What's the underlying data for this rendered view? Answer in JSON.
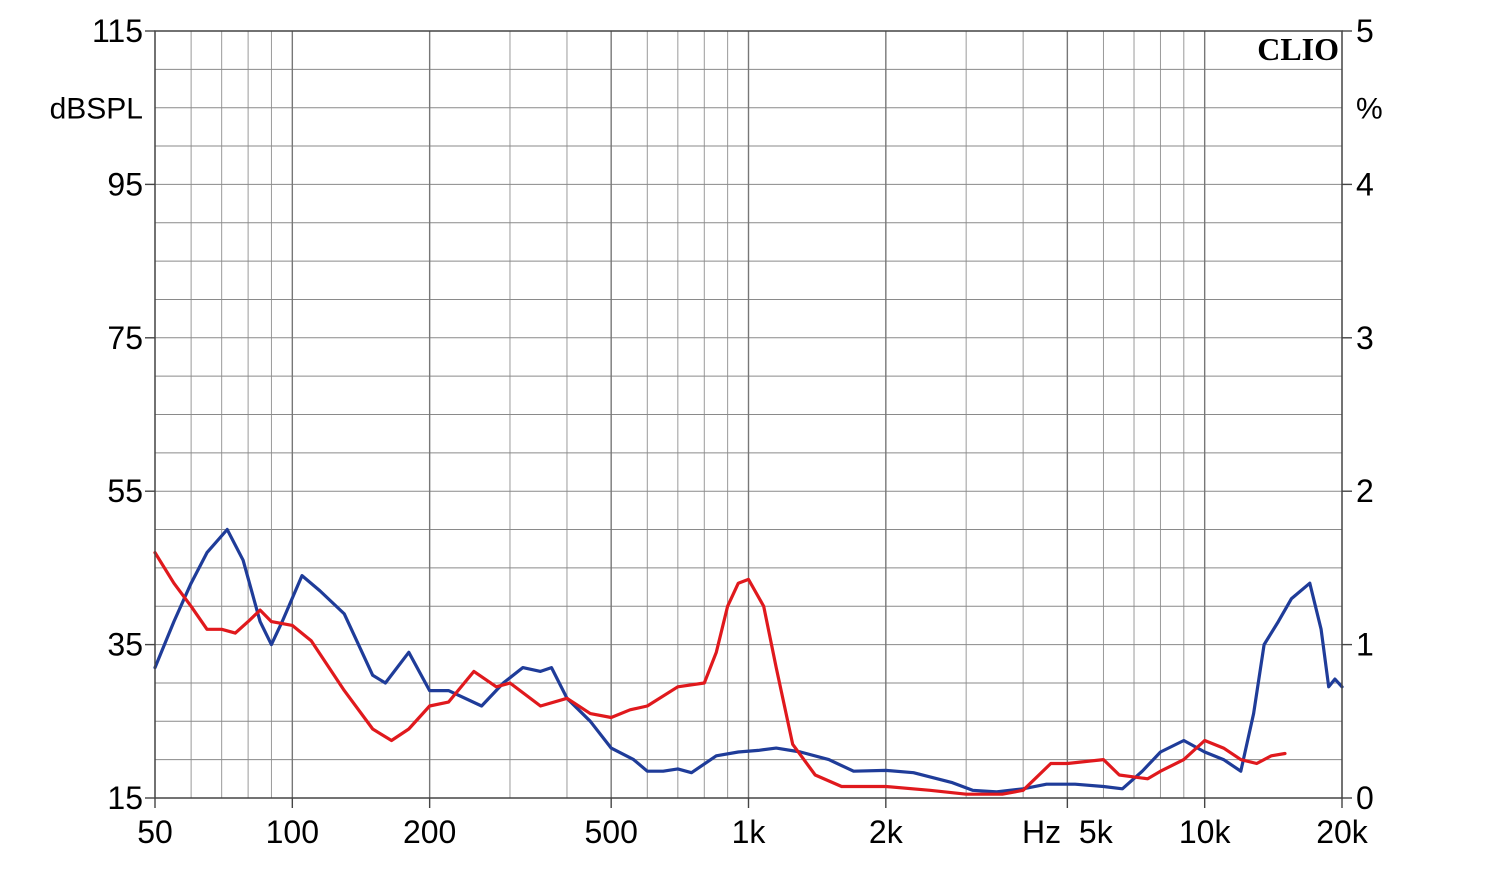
{
  "chart_data": {
    "type": "line",
    "brand_label": "CLIO",
    "x_axis": {
      "scale": "log",
      "range_hz": [
        50,
        20000
      ],
      "tick_values": [
        50,
        100,
        200,
        500,
        1000,
        2000,
        5000,
        10000,
        20000
      ],
      "tick_labels": [
        "50",
        "100",
        "200",
        "500",
        "1k",
        "2k",
        "Hz  5k",
        "10k",
        "20k"
      ]
    },
    "y_left": {
      "unit_label": "dBSPL",
      "range": [
        15,
        115
      ],
      "tick_values": [
        115,
        95,
        75,
        55,
        35,
        15
      ],
      "tick_labels": [
        "115",
        "95",
        "75",
        "55",
        "35",
        "15"
      ]
    },
    "y_right": {
      "unit_label": "%",
      "range": [
        0,
        5
      ],
      "tick_values": [
        5,
        4,
        3,
        2,
        1,
        0
      ],
      "tick_labels": [
        "5",
        "4",
        "3",
        "2",
        "1",
        "0"
      ]
    },
    "grid": true,
    "series": [
      {
        "color": "#1f3c99",
        "points": [
          [
            50,
            32
          ],
          [
            55,
            38
          ],
          [
            60,
            43
          ],
          [
            65,
            47
          ],
          [
            72,
            50
          ],
          [
            78,
            46
          ],
          [
            85,
            38
          ],
          [
            90,
            35
          ],
          [
            95,
            38
          ],
          [
            105,
            44
          ],
          [
            115,
            42
          ],
          [
            130,
            39
          ],
          [
            150,
            31
          ],
          [
            160,
            30
          ],
          [
            180,
            34
          ],
          [
            200,
            29
          ],
          [
            220,
            29
          ],
          [
            260,
            27
          ],
          [
            290,
            30
          ],
          [
            320,
            32
          ],
          [
            350,
            31.5
          ],
          [
            370,
            32
          ],
          [
            400,
            28
          ],
          [
            450,
            25
          ],
          [
            500,
            21.5
          ],
          [
            560,
            20
          ],
          [
            600,
            18.5
          ],
          [
            650,
            18.5
          ],
          [
            700,
            18.8
          ],
          [
            750,
            18.3
          ],
          [
            850,
            20.5
          ],
          [
            950,
            21
          ],
          [
            1050,
            21.2
          ],
          [
            1150,
            21.5
          ],
          [
            1300,
            21
          ],
          [
            1500,
            20
          ],
          [
            1700,
            18.5
          ],
          [
            2000,
            18.6
          ],
          [
            2300,
            18.3
          ],
          [
            2800,
            17
          ],
          [
            3100,
            16
          ],
          [
            3500,
            15.8
          ],
          [
            4000,
            16.2
          ],
          [
            4500,
            16.8
          ],
          [
            5200,
            16.8
          ],
          [
            6000,
            16.5
          ],
          [
            6600,
            16.2
          ],
          [
            7300,
            18.5
          ],
          [
            8000,
            21
          ],
          [
            9000,
            22.5
          ],
          [
            10000,
            21
          ],
          [
            11000,
            20
          ],
          [
            12000,
            18.5
          ],
          [
            12800,
            26
          ],
          [
            13500,
            35
          ],
          [
            14500,
            38
          ],
          [
            15500,
            41
          ],
          [
            17000,
            43
          ],
          [
            18000,
            37
          ],
          [
            18700,
            29.5
          ],
          [
            19300,
            30.5
          ],
          [
            20000,
            29.5
          ]
        ]
      },
      {
        "color": "#e0191d",
        "points": [
          [
            50,
            47
          ],
          [
            55,
            43
          ],
          [
            60,
            40
          ],
          [
            65,
            37
          ],
          [
            70,
            37
          ],
          [
            75,
            36.5
          ],
          [
            80,
            38
          ],
          [
            85,
            39.5
          ],
          [
            90,
            38
          ],
          [
            100,
            37.5
          ],
          [
            110,
            35.5
          ],
          [
            130,
            29
          ],
          [
            150,
            24
          ],
          [
            165,
            22.5
          ],
          [
            180,
            24
          ],
          [
            200,
            27
          ],
          [
            220,
            27.5
          ],
          [
            250,
            31.5
          ],
          [
            280,
            29.5
          ],
          [
            300,
            30
          ],
          [
            350,
            27
          ],
          [
            400,
            28
          ],
          [
            450,
            26
          ],
          [
            500,
            25.5
          ],
          [
            550,
            26.5
          ],
          [
            600,
            27
          ],
          [
            700,
            29.5
          ],
          [
            800,
            30
          ],
          [
            850,
            34
          ],
          [
            900,
            40
          ],
          [
            950,
            43
          ],
          [
            1000,
            43.5
          ],
          [
            1080,
            40
          ],
          [
            1150,
            32
          ],
          [
            1250,
            22
          ],
          [
            1400,
            18
          ],
          [
            1600,
            16.5
          ],
          [
            2000,
            16.5
          ],
          [
            2500,
            16
          ],
          [
            3000,
            15.5
          ],
          [
            3600,
            15.5
          ],
          [
            4000,
            16
          ],
          [
            4600,
            19.5
          ],
          [
            5000,
            19.5
          ],
          [
            6000,
            20
          ],
          [
            6500,
            18
          ],
          [
            7500,
            17.5
          ],
          [
            8000,
            18.5
          ],
          [
            9000,
            20
          ],
          [
            10000,
            22.5
          ],
          [
            11000,
            21.5
          ],
          [
            12000,
            20
          ],
          [
            13000,
            19.5
          ],
          [
            14000,
            20.5
          ],
          [
            15000,
            20.8
          ]
        ]
      }
    ]
  }
}
